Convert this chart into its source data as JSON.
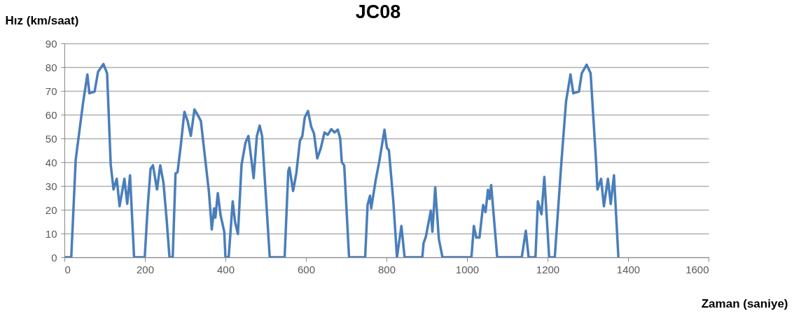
{
  "chart_data": {
    "type": "line",
    "title": "JC08",
    "xlabel": "Zaman (saniye)",
    "ylabel": "Hız (km/saat)",
    "x": [
      2,
      17,
      28,
      46,
      57,
      62,
      75,
      83.5,
      97,
      106,
      115,
      122,
      130,
      137,
      149,
      156,
      163,
      173,
      199.5,
      207,
      214,
      220,
      230,
      238,
      246,
      254,
      261,
      269,
      276,
      281,
      289,
      298,
      306,
      314,
      323,
      330,
      339,
      359,
      366,
      372,
      375,
      381,
      388,
      397,
      400,
      408,
      418,
      424,
      431,
      440,
      450,
      457,
      463,
      470,
      478,
      485,
      491,
      510,
      547,
      556,
      559,
      568,
      576,
      585,
      591,
      597,
      605,
      613,
      620,
      628,
      637,
      646,
      654,
      663,
      671,
      679,
      685,
      689,
      695,
      707,
      747,
      753,
      759,
      762,
      773,
      782,
      795,
      801,
      806,
      817,
      826,
      837,
      845,
      889,
      892,
      898,
      910,
      914,
      921,
      930,
      939,
      1011,
      1017,
      1023,
      1031,
      1040,
      1046,
      1052,
      1056,
      1060,
      1075,
      1136,
      1146,
      1153,
      1170,
      1176,
      1185,
      1192,
      1204,
      1218,
      1234,
      1246,
      1257,
      1264,
      1278,
      1285,
      1297,
      1307,
      1321,
      1324,
      1333,
      1340,
      1350,
      1357,
      1365,
      1376
    ],
    "series": [
      {
        "color": "#4a7ebb",
        "values": [
          0,
          0,
          41,
          64.6,
          76.9,
          69,
          69.7,
          78,
          81.3,
          77.4,
          39,
          28.5,
          33,
          21.5,
          33,
          22.5,
          34.5,
          0,
          0,
          21.5,
          37.2,
          38.7,
          28.5,
          38.7,
          31.4,
          15.7,
          0,
          0,
          35.3,
          35.8,
          47,
          61.2,
          57.3,
          51.1,
          62.2,
          60.2,
          57.3,
          27.4,
          11.7,
          20.6,
          16.7,
          27,
          17.6,
          10.8,
          0,
          0,
          23.5,
          14.7,
          9.8,
          39,
          48.4,
          51,
          43,
          33.3,
          51,
          55.4,
          51,
          0,
          0,
          36.2,
          37.7,
          27.9,
          35.3,
          49,
          51,
          58.8,
          61.5,
          54.9,
          52,
          41.6,
          46,
          52.5,
          51.5,
          53.9,
          52.5,
          53.7,
          50,
          40,
          38.6,
          0,
          0,
          22,
          25.9,
          20.6,
          32.3,
          40.2,
          53.7,
          46,
          45,
          23.5,
          0,
          13.2,
          0,
          0,
          5.9,
          8.8,
          19.6,
          10.8,
          29.4,
          7.8,
          0,
          0,
          13.2,
          8.3,
          8.3,
          22,
          19,
          28.4,
          24.5,
          30.4,
          0,
          0,
          11.2,
          0,
          0,
          23.5,
          18.1,
          33.8,
          0,
          0,
          39,
          65.6,
          76.9,
          69,
          69.7,
          77.4,
          81,
          77.4,
          39,
          28.5,
          33,
          21.5,
          33,
          22.4,
          34.5,
          0
        ]
      }
    ],
    "xlim": [
      0,
      1600
    ],
    "xticks": [
      0,
      200,
      400,
      600,
      800,
      1000,
      1200,
      1400,
      1600
    ],
    "ylim": [
      0,
      90
    ],
    "yticks": [
      0,
      10,
      20,
      30,
      40,
      50,
      60,
      70,
      80,
      90
    ],
    "grid": "y"
  }
}
